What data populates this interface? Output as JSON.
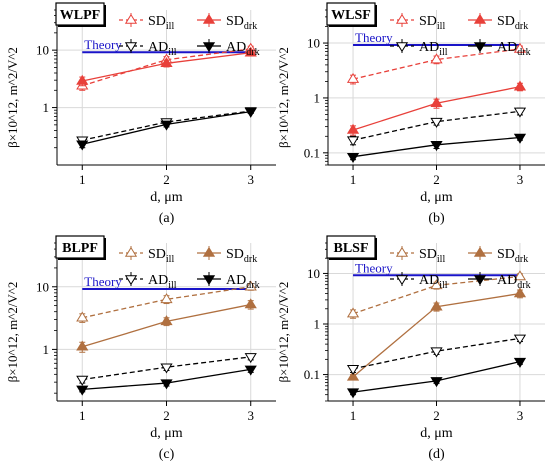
{
  "figure": {
    "panel_labels": [
      "(a)",
      "(b)",
      "(c)",
      "(d)"
    ]
  },
  "colors": {
    "SD": "#e8403a",
    "SD_BL": "#b07040",
    "AD": "#000000",
    "theory": "#1a14c8",
    "grid": "#d9d9d9",
    "axis": "#000000"
  },
  "chart_data": [
    {
      "type": "line",
      "panel_label": "(a)",
      "title": "WLPF",
      "xlabel": "d, μm",
      "ylabel": "β×10^12, m^2/V^2",
      "x": [
        1,
        2,
        3
      ],
      "x_ticks": [
        "1",
        "2",
        "3"
      ],
      "xlim": [
        0.7,
        3.3
      ],
      "y_scale": "log",
      "ylim": [
        0.1,
        50
      ],
      "y_ticks": [
        1,
        10
      ],
      "y_tick_labels": [
        "1",
        "10"
      ],
      "grid": true,
      "legend_position": "top-right",
      "theory": {
        "label": "Theory",
        "value": 9.2
      },
      "series": [
        {
          "name": "SD_ill",
          "name_base": "SD",
          "name_sub": "ill",
          "style": "dashed",
          "marker": "open-triangle-up",
          "color_key": "SD",
          "values": [
            2.4,
            6.8,
            10.5
          ],
          "errors": [
            0.4,
            0.9,
            1.2
          ]
        },
        {
          "name": "SD_drk",
          "name_base": "SD",
          "name_sub": "drk",
          "style": "solid",
          "marker": "filled-triangle-up",
          "color_key": "SD",
          "values": [
            2.9,
            5.9,
            9.0
          ],
          "errors": [
            0.5,
            0.8,
            1.1
          ]
        },
        {
          "name": "AD_ill",
          "name_base": "AD",
          "name_sub": "ill",
          "style": "dashed",
          "marker": "open-triangle-down",
          "color_key": "AD",
          "values": [
            0.27,
            0.56,
            0.87
          ],
          "errors": [
            0.03,
            0.05,
            0.06
          ]
        },
        {
          "name": "AD_drk",
          "name_base": "AD",
          "name_sub": "drk",
          "style": "solid",
          "marker": "filled-triangle-down",
          "color_key": "AD",
          "values": [
            0.23,
            0.51,
            0.85
          ],
          "errors": [
            0.03,
            0.05,
            0.06
          ]
        }
      ]
    },
    {
      "type": "line",
      "panel_label": "(b)",
      "title": "WLSF",
      "xlabel": "d, μm",
      "ylabel": "β×10^12, m^2/V^2",
      "x": [
        1,
        2,
        3
      ],
      "x_ticks": [
        "1",
        "2",
        "3"
      ],
      "xlim": [
        0.7,
        3.3
      ],
      "y_scale": "log",
      "ylim": [
        0.06,
        40
      ],
      "y_ticks": [
        0.1,
        1,
        10
      ],
      "y_tick_labels": [
        "0.1",
        "1",
        "10"
      ],
      "grid": true,
      "legend_position": "top-right",
      "theory": {
        "label": "Theory",
        "value": 9.2
      },
      "series": [
        {
          "name": "SD_ill",
          "name_base": "SD",
          "name_sub": "ill",
          "style": "dashed",
          "marker": "open-triangle-up",
          "color_key": "SD",
          "values": [
            2.2,
            5.0,
            7.8
          ],
          "errors": [
            0.4,
            0.8,
            1.0
          ]
        },
        {
          "name": "SD_drk",
          "name_base": "SD",
          "name_sub": "drk",
          "style": "solid",
          "marker": "filled-triangle-up",
          "color_key": "SD",
          "values": [
            0.26,
            0.8,
            1.6
          ],
          "errors": [
            0.05,
            0.15,
            0.25
          ]
        },
        {
          "name": "AD_ill",
          "name_base": "AD",
          "name_sub": "ill",
          "style": "dashed",
          "marker": "open-triangle-down",
          "color_key": "AD",
          "values": [
            0.17,
            0.37,
            0.57
          ],
          "errors": [
            0.03,
            0.05,
            0.08
          ]
        },
        {
          "name": "AD_drk",
          "name_base": "AD",
          "name_sub": "drk",
          "style": "solid",
          "marker": "filled-triangle-down",
          "color_key": "AD",
          "values": [
            0.085,
            0.14,
            0.19
          ],
          "errors": [
            0.01,
            0.02,
            0.02
          ]
        }
      ]
    },
    {
      "type": "line",
      "panel_label": "(c)",
      "title": "BLPF",
      "xlabel": "d, μm",
      "ylabel": "β×10^12, m^2/V^2",
      "x": [
        1,
        2,
        3
      ],
      "x_ticks": [
        "1",
        "2",
        "3"
      ],
      "xlim": [
        0.7,
        3.3
      ],
      "y_scale": "log",
      "ylim": [
        0.15,
        50
      ],
      "y_ticks": [
        1,
        10
      ],
      "y_tick_labels": [
        "1",
        "10"
      ],
      "grid": true,
      "legend_position": "top-right",
      "theory": {
        "label": "Theory",
        "value": 9.2
      },
      "series": [
        {
          "name": "SD_ill",
          "name_base": "SD",
          "name_sub": "ill",
          "style": "dashed",
          "marker": "open-triangle-up",
          "color_key": "SD_BL",
          "values": [
            3.2,
            6.3,
            10.0
          ],
          "errors": [
            0.5,
            0.9,
            1.2
          ]
        },
        {
          "name": "SD_drk",
          "name_base": "SD",
          "name_sub": "drk",
          "style": "solid",
          "marker": "filled-triangle-up",
          "color_key": "SD_BL",
          "values": [
            1.1,
            2.8,
            5.2
          ],
          "errors": [
            0.2,
            0.4,
            0.8
          ]
        },
        {
          "name": "AD_ill",
          "name_base": "AD",
          "name_sub": "ill",
          "style": "dashed",
          "marker": "open-triangle-down",
          "color_key": "AD",
          "values": [
            0.33,
            0.52,
            0.76
          ],
          "errors": [
            0.04,
            0.06,
            0.08
          ]
        },
        {
          "name": "AD_drk",
          "name_base": "AD",
          "name_sub": "drk",
          "style": "solid",
          "marker": "filled-triangle-down",
          "color_key": "AD",
          "values": [
            0.23,
            0.29,
            0.48
          ],
          "errors": [
            0.02,
            0.03,
            0.05
          ]
        }
      ]
    },
    {
      "type": "line",
      "panel_label": "(d)",
      "title": "BLSF",
      "xlabel": "d, μm",
      "ylabel": "β×10^12, m^2/V^2",
      "x": [
        1,
        2,
        3
      ],
      "x_ticks": [
        "1",
        "2",
        "3"
      ],
      "xlim": [
        0.7,
        3.3
      ],
      "y_scale": "log",
      "ylim": [
        0.03,
        40
      ],
      "y_ticks": [
        0.1,
        1,
        10
      ],
      "y_tick_labels": [
        "0.1",
        "1",
        "10"
      ],
      "grid": true,
      "legend_position": "top-right",
      "theory": {
        "label": "Theory",
        "value": 9.2
      },
      "series": [
        {
          "name": "SD_ill",
          "name_base": "SD",
          "name_sub": "ill",
          "style": "dashed",
          "marker": "open-triangle-up",
          "color_key": "SD_BL",
          "values": [
            1.6,
            5.8,
            8.7
          ],
          "errors": [
            0.3,
            0.9,
            1.1
          ]
        },
        {
          "name": "SD_drk",
          "name_base": "SD",
          "name_sub": "drk",
          "style": "solid",
          "marker": "filled-triangle-up",
          "color_key": "SD_BL",
          "values": [
            0.09,
            2.2,
            4.0
          ],
          "errors": [
            0.01,
            0.4,
            0.7
          ]
        },
        {
          "name": "AD_ill",
          "name_base": "AD",
          "name_sub": "ill",
          "style": "dashed",
          "marker": "open-triangle-down",
          "color_key": "AD",
          "values": [
            0.13,
            0.29,
            0.52
          ],
          "errors": [
            0.02,
            0.04,
            0.07
          ]
        },
        {
          "name": "AD_drk",
          "name_base": "AD",
          "name_sub": "drk",
          "style": "solid",
          "marker": "filled-triangle-down",
          "color_key": "AD",
          "values": [
            0.045,
            0.075,
            0.18
          ],
          "errors": [
            0.005,
            0.008,
            0.02
          ]
        }
      ]
    }
  ]
}
